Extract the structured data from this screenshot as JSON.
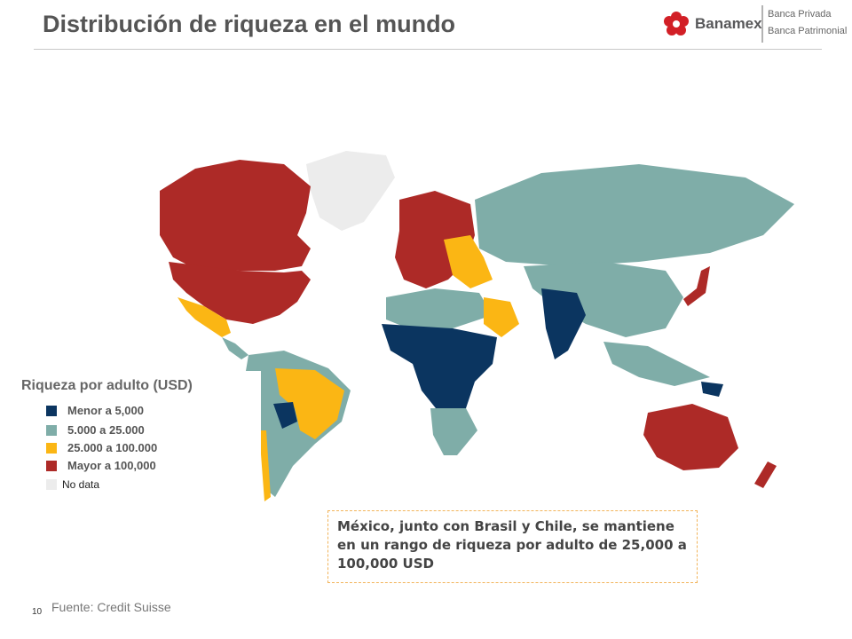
{
  "slide": {
    "title": "Distribución de riqueza en el mundo",
    "page_number": "10",
    "source": "Fuente: Credit Suisse"
  },
  "logo": {
    "brand": "Banamex",
    "line1": "Banca Privada",
    "line2": "Banca Patrimonial",
    "icon": "banamex-flower-icon",
    "color": "#d21f26"
  },
  "legend": {
    "title": "Riqueza por adulto (USD)",
    "items": [
      {
        "label": "Menor a 5,000",
        "color": "#0b3560"
      },
      {
        "label": "5.000 a 25.000",
        "color": "#7fada8"
      },
      {
        "label": "25.000 a 100.000",
        "color": "#fbb614"
      },
      {
        "label": "Mayor a 100,000",
        "color": "#ad2a27"
      },
      {
        "label": "No data",
        "color": "#ececec"
      }
    ]
  },
  "callout": {
    "text": "México, junto con Brasil y Chile, se mantiene en un rango de riqueza por adulto de 25,000 a 100,000 USD"
  },
  "map": {
    "type": "choropleth",
    "regions": [
      {
        "name": "Canadá",
        "category": "Mayor a 100,000"
      },
      {
        "name": "Estados Unidos",
        "category": "Mayor a 100,000"
      },
      {
        "name": "Groenlandia",
        "category": "No data"
      },
      {
        "name": "México",
        "category": "25.000 a 100.000"
      },
      {
        "name": "Brasil",
        "category": "25.000 a 100.000"
      },
      {
        "name": "Chile",
        "category": "25.000 a 100.000"
      },
      {
        "name": "Bolivia",
        "category": "Menor a 5,000"
      },
      {
        "name": "Europa Occidental",
        "category": "Mayor a 100,000"
      },
      {
        "name": "Rusia",
        "category": "5.000 a 25.000"
      },
      {
        "name": "China",
        "category": "5.000 a 25.000"
      },
      {
        "name": "India",
        "category": "Menor a 5,000"
      },
      {
        "name": "África Subsahariana",
        "category": "Menor a 5,000"
      },
      {
        "name": "Sudáfrica",
        "category": "5.000 a 25.000"
      },
      {
        "name": "Arabia Saudita",
        "category": "25.000 a 100.000"
      },
      {
        "name": "Japón",
        "category": "Mayor a 100,000"
      },
      {
        "name": "Australia",
        "category": "Mayor a 100,000"
      },
      {
        "name": "Nueva Zelanda",
        "category": "Mayor a 100,000"
      }
    ]
  }
}
